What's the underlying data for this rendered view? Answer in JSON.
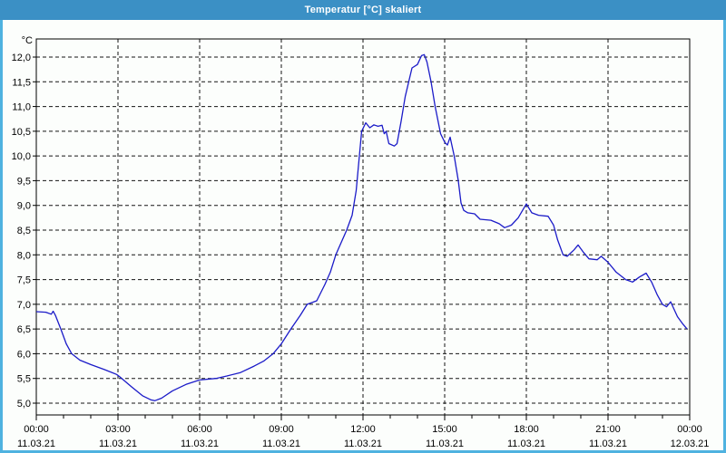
{
  "window": {
    "title": "Temperatur [°C] skaliert"
  },
  "colors": {
    "titlebar_bg": "#3b90c5",
    "titlebar_text": "#ffffff",
    "window_border": "#4fb2e0",
    "plot_border": "#000000",
    "gridline": "#141414",
    "series_line": "#1b1bc8",
    "label_text": "#000000",
    "background": "#fcfefc"
  },
  "chart_data": {
    "type": "line",
    "title": "Temperatur [°C] skaliert",
    "y_axis_label": "°C",
    "ylim": [
      5.0,
      12.0
    ],
    "y_tick_step": 0.5,
    "y_ticks": [
      "12,0",
      "11,5",
      "11,0",
      "10,5",
      "10,0",
      "9,5",
      "9,0",
      "8,5",
      "8,0",
      "7,5",
      "7,0",
      "6,5",
      "6,0",
      "5,5",
      "5,0"
    ],
    "y_tick_values": [
      12.0,
      11.5,
      11.0,
      10.5,
      10.0,
      9.5,
      9.0,
      8.5,
      8.0,
      7.5,
      7.0,
      6.5,
      6.0,
      5.5,
      5.0
    ],
    "x_range_hours": [
      0,
      24
    ],
    "x_minor_tick_hours": 1,
    "grid": "dashed",
    "legend": "none",
    "x_major_ticks": [
      {
        "hour": 0,
        "time": "00:00",
        "date": "11.03.21"
      },
      {
        "hour": 3,
        "time": "03:00",
        "date": "11.03.21"
      },
      {
        "hour": 6,
        "time": "06:00",
        "date": "11.03.21"
      },
      {
        "hour": 9,
        "time": "09:00",
        "date": "11.03.21"
      },
      {
        "hour": 12,
        "time": "12:00",
        "date": "11.03.21"
      },
      {
        "hour": 15,
        "time": "15:00",
        "date": "11.03.21"
      },
      {
        "hour": 18,
        "time": "18:00",
        "date": "11.03.21"
      },
      {
        "hour": 21,
        "time": "21:00",
        "date": "11.03.21"
      },
      {
        "hour": 24,
        "time": "00:00",
        "date": "12.03.21"
      }
    ],
    "series": [
      {
        "name": "Temperatur",
        "color": "#1b1bc8",
        "points": [
          [
            0.0,
            6.85
          ],
          [
            0.35,
            6.84
          ],
          [
            0.55,
            6.8
          ],
          [
            0.62,
            6.86
          ],
          [
            0.7,
            6.78
          ],
          [
            0.9,
            6.5
          ],
          [
            1.1,
            6.2
          ],
          [
            1.3,
            6.0
          ],
          [
            1.6,
            5.87
          ],
          [
            2.0,
            5.78
          ],
          [
            2.5,
            5.68
          ],
          [
            2.95,
            5.58
          ],
          [
            3.05,
            5.54
          ],
          [
            3.5,
            5.33
          ],
          [
            3.9,
            5.15
          ],
          [
            4.2,
            5.07
          ],
          [
            4.35,
            5.05
          ],
          [
            4.6,
            5.1
          ],
          [
            5.0,
            5.25
          ],
          [
            5.5,
            5.38
          ],
          [
            6.0,
            5.47
          ],
          [
            6.6,
            5.5
          ],
          [
            7.0,
            5.55
          ],
          [
            7.5,
            5.62
          ],
          [
            8.0,
            5.75
          ],
          [
            8.35,
            5.85
          ],
          [
            8.7,
            6.0
          ],
          [
            9.0,
            6.2
          ],
          [
            9.35,
            6.5
          ],
          [
            9.7,
            6.78
          ],
          [
            9.95,
            7.0
          ],
          [
            10.3,
            7.07
          ],
          [
            10.6,
            7.4
          ],
          [
            10.8,
            7.65
          ],
          [
            11.0,
            8.0
          ],
          [
            11.4,
            8.5
          ],
          [
            11.6,
            8.8
          ],
          [
            11.75,
            9.3
          ],
          [
            11.85,
            9.9
          ],
          [
            11.95,
            10.5
          ],
          [
            12.1,
            10.67
          ],
          [
            12.25,
            10.57
          ],
          [
            12.4,
            10.63
          ],
          [
            12.55,
            10.6
          ],
          [
            12.7,
            10.62
          ],
          [
            12.78,
            10.45
          ],
          [
            12.85,
            10.5
          ],
          [
            12.95,
            10.25
          ],
          [
            13.15,
            10.2
          ],
          [
            13.25,
            10.25
          ],
          [
            13.4,
            10.7
          ],
          [
            13.55,
            11.2
          ],
          [
            13.7,
            11.55
          ],
          [
            13.8,
            11.78
          ],
          [
            14.0,
            11.85
          ],
          [
            14.15,
            12.03
          ],
          [
            14.25,
            12.05
          ],
          [
            14.35,
            11.9
          ],
          [
            14.5,
            11.5
          ],
          [
            14.65,
            11.0
          ],
          [
            14.85,
            10.45
          ],
          [
            15.0,
            10.28
          ],
          [
            15.1,
            10.22
          ],
          [
            15.2,
            10.38
          ],
          [
            15.35,
            10.0
          ],
          [
            15.5,
            9.5
          ],
          [
            15.6,
            9.05
          ],
          [
            15.7,
            8.9
          ],
          [
            15.85,
            8.85
          ],
          [
            16.1,
            8.83
          ],
          [
            16.3,
            8.72
          ],
          [
            16.7,
            8.7
          ],
          [
            17.0,
            8.63
          ],
          [
            17.2,
            8.55
          ],
          [
            17.45,
            8.6
          ],
          [
            17.7,
            8.75
          ],
          [
            18.0,
            9.03
          ],
          [
            18.2,
            8.85
          ],
          [
            18.45,
            8.8
          ],
          [
            18.8,
            8.78
          ],
          [
            19.0,
            8.6
          ],
          [
            19.15,
            8.3
          ],
          [
            19.35,
            8.0
          ],
          [
            19.5,
            7.97
          ],
          [
            19.75,
            8.1
          ],
          [
            19.9,
            8.2
          ],
          [
            20.1,
            8.05
          ],
          [
            20.3,
            7.92
          ],
          [
            20.6,
            7.9
          ],
          [
            20.75,
            7.97
          ],
          [
            21.0,
            7.85
          ],
          [
            21.3,
            7.65
          ],
          [
            21.65,
            7.5
          ],
          [
            21.9,
            7.45
          ],
          [
            22.15,
            7.55
          ],
          [
            22.4,
            7.63
          ],
          [
            22.6,
            7.45
          ],
          [
            22.8,
            7.2
          ],
          [
            23.0,
            7.0
          ],
          [
            23.15,
            6.95
          ],
          [
            23.3,
            7.05
          ],
          [
            23.55,
            6.75
          ],
          [
            23.75,
            6.6
          ],
          [
            23.9,
            6.5
          ]
        ]
      }
    ]
  }
}
